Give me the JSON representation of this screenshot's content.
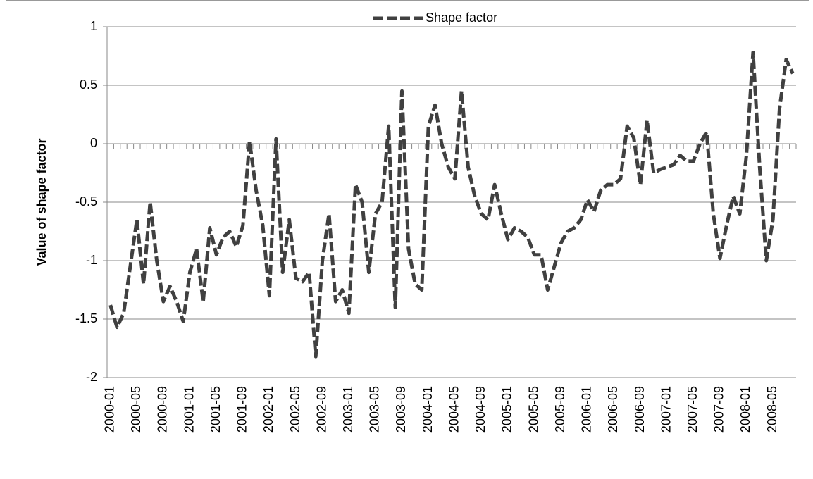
{
  "chart_data": {
    "type": "line",
    "y_label": "Value of shape factor",
    "categories": [
      "2000-01",
      null,
      null,
      null,
      "2000-05",
      null,
      null,
      null,
      "2000-09",
      null,
      null,
      null,
      "2001-01",
      null,
      null,
      null,
      "2001-05",
      null,
      null,
      null,
      "2001-09",
      null,
      null,
      null,
      "2002-01",
      null,
      null,
      null,
      "2002-05",
      null,
      null,
      null,
      "2002-09",
      null,
      null,
      null,
      "2003-01",
      null,
      null,
      null,
      "2003-05",
      null,
      null,
      null,
      "2003-09",
      null,
      null,
      null,
      "2004-01",
      null,
      null,
      null,
      "2004-05",
      null,
      null,
      null,
      "2004-09",
      null,
      null,
      null,
      "2005-01",
      null,
      null,
      null,
      "2005-05",
      null,
      null,
      null,
      "2005-09",
      null,
      null,
      null,
      "2006-01",
      null,
      null,
      null,
      "2006-05",
      null,
      null,
      null,
      "2006-09",
      null,
      null,
      null,
      "2007-01",
      null,
      null,
      null,
      "2007-05",
      null,
      null,
      null,
      "2007-09",
      null,
      null,
      null,
      "2008-01",
      null,
      null,
      null,
      "2008-05",
      null,
      null,
      null
    ],
    "series": [
      {
        "name": "Shape factor",
        "color": "#404040",
        "values": [
          -1.38,
          -1.57,
          -1.45,
          -1.05,
          -0.65,
          -1.2,
          -0.5,
          -1.0,
          -1.35,
          -1.22,
          -1.35,
          -1.52,
          -1.1,
          -0.9,
          -1.35,
          -0.72,
          -0.95,
          -0.8,
          -0.75,
          -0.88,
          -0.7,
          0.02,
          -0.4,
          -0.7,
          -1.3,
          0.04,
          -1.1,
          -0.65,
          -1.15,
          -1.18,
          -1.1,
          -1.82,
          -1.0,
          -0.6,
          -1.35,
          -1.25,
          -1.45,
          -0.35,
          -0.5,
          -1.1,
          -0.6,
          -0.5,
          0.15,
          -1.4,
          0.45,
          -0.9,
          -1.2,
          -1.25,
          0.15,
          0.33,
          0.0,
          -0.2,
          -0.3,
          0.45,
          -0.2,
          -0.45,
          -0.6,
          -0.65,
          -0.35,
          -0.6,
          -0.82,
          -0.72,
          -0.75,
          -0.8,
          -0.95,
          -0.95,
          -1.25,
          -1.05,
          -0.85,
          -0.75,
          -0.72,
          -0.65,
          -0.48,
          -0.58,
          -0.4,
          -0.35,
          -0.35,
          -0.3,
          0.15,
          0.05,
          -0.35,
          0.2,
          -0.25,
          -0.22,
          -0.2,
          -0.18,
          -0.1,
          -0.15,
          -0.15,
          0.0,
          0.1,
          -0.6,
          -0.98,
          -0.7,
          -0.45,
          -0.6,
          -0.1,
          0.78,
          -0.2,
          -1.0,
          -0.65,
          0.3,
          0.72,
          0.6
        ]
      }
    ],
    "ylim": [
      -2,
      1
    ],
    "yticks": [
      1,
      0.5,
      0,
      -0.5,
      -1,
      -1.5,
      -2
    ],
    "grid": true,
    "legend": "top"
  }
}
